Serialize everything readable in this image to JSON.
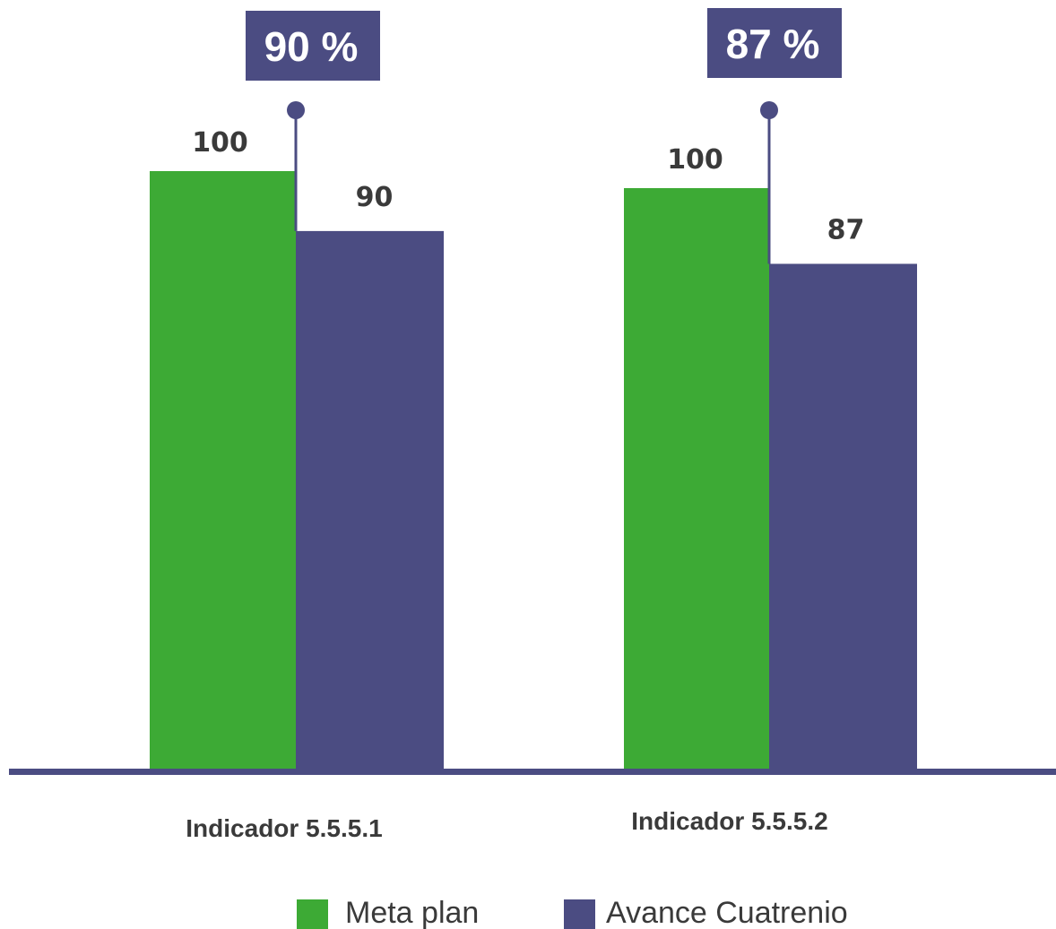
{
  "chart_data": {
    "type": "bar",
    "categories": [
      "Indicador 5.5.5.1",
      "Indicador 5.5.5.2"
    ],
    "series": [
      {
        "name": "Meta plan",
        "values": [
          100,
          100
        ],
        "color": "#3daa35"
      },
      {
        "name": "Avance Cuatrenio",
        "values": [
          90,
          87
        ],
        "color": "#4b4c82"
      }
    ],
    "percent_labels": [
      "90 %",
      "87 %"
    ],
    "value_labels": {
      "meta": [
        "100",
        "100"
      ],
      "avance": [
        "90",
        "87"
      ]
    },
    "ylim": [
      0,
      100
    ],
    "grid": false,
    "legend": "bottom",
    "axis_color": "#4b4c82",
    "text_color": "#3a3a3a"
  }
}
